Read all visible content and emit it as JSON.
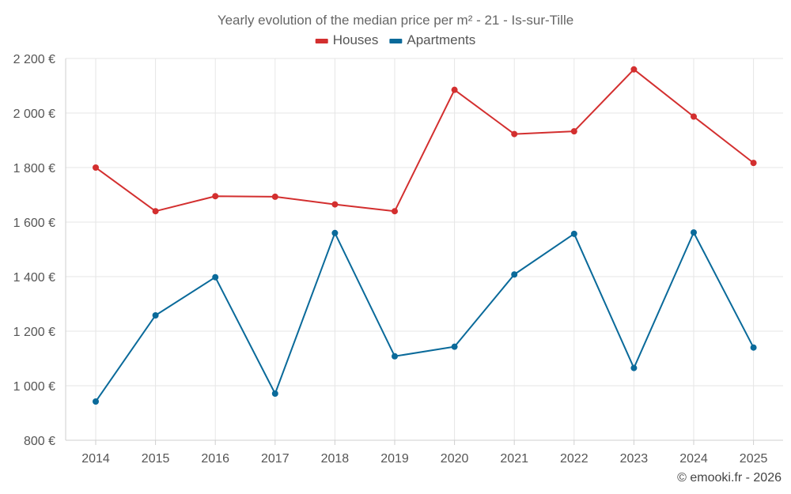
{
  "chart_data": {
    "type": "line",
    "title": "Yearly evolution of the median price per m² - 21 - Is-sur-Tille",
    "categories": [
      "2014",
      "2015",
      "2016",
      "2017",
      "2018",
      "2019",
      "2020",
      "2021",
      "2022",
      "2023",
      "2024",
      "2025"
    ],
    "series": [
      {
        "name": "Houses",
        "color": "#d32f2f",
        "values": [
          1800,
          1640,
          1695,
          1693,
          1665,
          1640,
          2085,
          1923,
          1933,
          2160,
          1987,
          1817
        ]
      },
      {
        "name": "Apartments",
        "color": "#0a6a9a",
        "values": [
          942,
          1258,
          1398,
          971,
          1560,
          1108,
          1143,
          1408,
          1557,
          1065,
          1562,
          1140
        ]
      }
    ],
    "ylim": [
      800,
      2200
    ],
    "yticks": [
      800,
      1000,
      1200,
      1400,
      1600,
      1800,
      2000,
      2200
    ],
    "ytick_labels": [
      "800 €",
      "1 000 €",
      "1 200 €",
      "1 400 €",
      "1 600 €",
      "1 800 €",
      "2 000 €",
      "2 200 €"
    ],
    "xlabel": "",
    "ylabel": "",
    "grid": true,
    "legend_position": "top-center"
  },
  "credit": "© emooki.fr - 2026"
}
